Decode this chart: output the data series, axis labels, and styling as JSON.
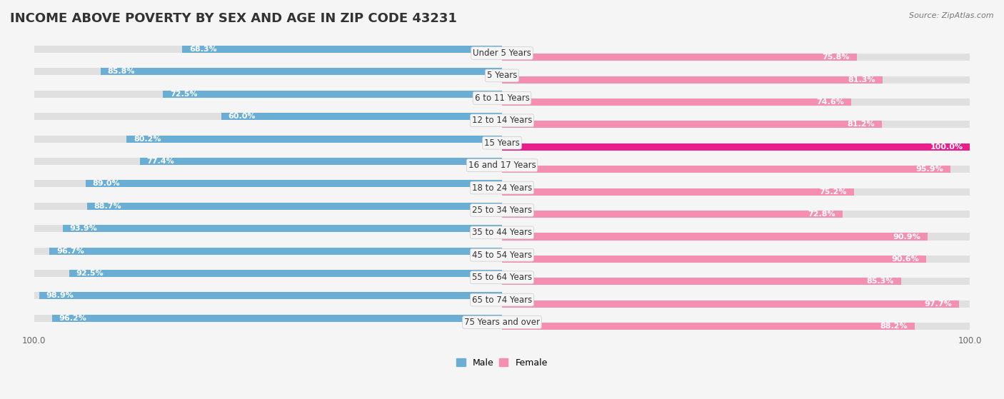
{
  "title": "INCOME ABOVE POVERTY BY SEX AND AGE IN ZIP CODE 43231",
  "source": "Source: ZipAtlas.com",
  "categories": [
    "Under 5 Years",
    "5 Years",
    "6 to 11 Years",
    "12 to 14 Years",
    "15 Years",
    "16 and 17 Years",
    "18 to 24 Years",
    "25 to 34 Years",
    "35 to 44 Years",
    "45 to 54 Years",
    "55 to 64 Years",
    "65 to 74 Years",
    "75 Years and over"
  ],
  "male_values": [
    68.3,
    85.8,
    72.5,
    60.0,
    80.2,
    77.4,
    89.0,
    88.7,
    93.9,
    96.7,
    92.5,
    98.9,
    96.2
  ],
  "female_values": [
    75.8,
    81.3,
    74.6,
    81.2,
    100.0,
    95.9,
    75.2,
    72.8,
    90.9,
    90.6,
    85.3,
    97.7,
    88.2
  ],
  "male_color": "#6aaed6",
  "female_color": "#f48fb1",
  "female_color_highlight": "#e91e8c",
  "bg_color": "#f5f5f5",
  "bar_bg_color": "#e0e0e0",
  "title_fontsize": 13,
  "label_fontsize": 8.5,
  "value_fontsize": 8,
  "legend_fontsize": 9,
  "source_fontsize": 8,
  "max_value": 100.0
}
